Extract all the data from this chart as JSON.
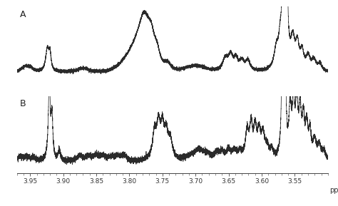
{
  "x_min": 3.5,
  "x_max": 3.97,
  "xlabel": "ppm",
  "xticks": [
    3.95,
    3.9,
    3.85,
    3.8,
    3.75,
    3.7,
    3.65,
    3.6,
    3.55
  ],
  "label_A": "A",
  "label_B": "B",
  "line_color": "#2a2a2a",
  "background_color": "#ffffff",
  "linewidth": 0.55,
  "figsize": [
    4.74,
    2.89
  ],
  "dpi": 100
}
